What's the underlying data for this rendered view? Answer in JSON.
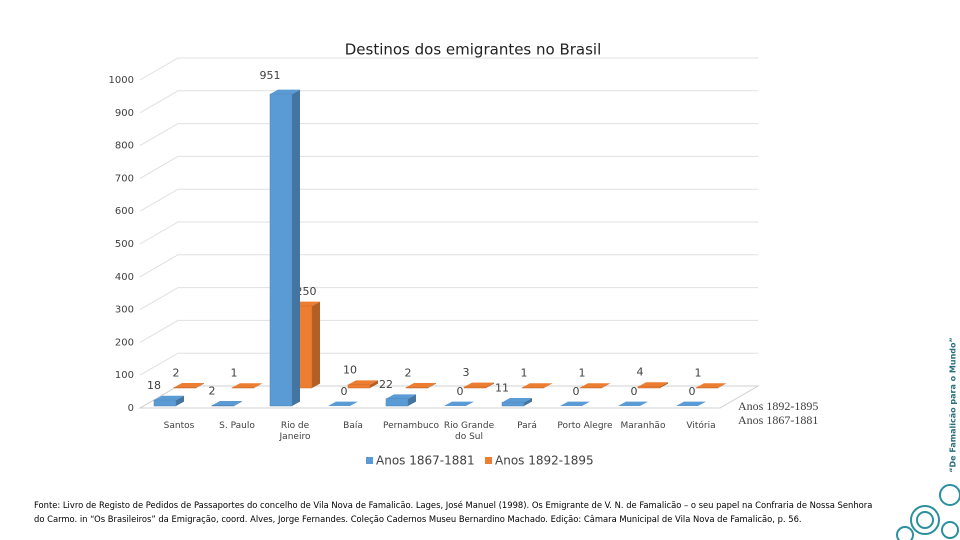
{
  "chart_data": {
    "type": "bar3d",
    "title": "Destinos dos emigrantes no Brasil",
    "categories": [
      "Santos",
      "S. Paulo",
      "Rio de Janeiro",
      "Baía",
      "Pernambuco",
      "Rio Grande do Sul",
      "Pará",
      "Porto Alegre",
      "Maranhão",
      "Vitória"
    ],
    "series": [
      {
        "name": "Anos 1867-1881",
        "color": "#5b9bd5",
        "values": [
          18,
          2,
          951,
          0,
          22,
          0,
          11,
          0,
          0,
          0
        ]
      },
      {
        "name": "Anos 1892-1895",
        "color": "#ed7d31",
        "values": [
          2,
          1,
          250,
          10,
          2,
          3,
          1,
          1,
          4,
          1
        ]
      }
    ],
    "ylim": [
      0,
      1000
    ],
    "yticks": [
      0,
      100,
      200,
      300,
      400,
      500,
      600,
      700,
      800,
      900,
      1000
    ],
    "grid": true
  },
  "source": "Fonte: Livro de Registo de Pedidos de Passaportes do concelho de Vila Nova de Famalicão. Lages, José Manuel (1998). Os Emigrante de V. N. de Famalicão – o seu papel na Confraria de Nossa Senhora do Carmo. in “Os Brasileiros” da Emigração, coord. Alves, Jorge Fernandes. Coleção Cadernos Museu Bernardino Machado. Edição: Câmara Municipal de Vila Nova de Famalicão, p. 56.",
  "side_text": "“De Famalicão para o Mundo”"
}
